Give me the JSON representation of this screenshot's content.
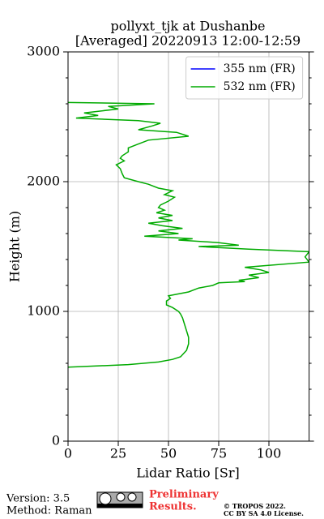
{
  "chart_data": {
    "type": "profile",
    "title": [
      "pollyxt_tjk at Dushanbe",
      "[Averaged] 20220913 12:00-12:59"
    ],
    "xlabel": "Lidar Ratio [Sr]",
    "ylabel": "Height (m)",
    "xlim": [
      0,
      120
    ],
    "ylim": [
      0,
      3000
    ],
    "xticks": [
      0,
      25,
      50,
      75,
      100
    ],
    "yticks": [
      0,
      1000,
      2000,
      3000
    ],
    "yminorticks": [
      200,
      400,
      600,
      800,
      1200,
      1400,
      1600,
      1800,
      2200,
      2400,
      2600,
      2800
    ],
    "grid": true,
    "legend": "upper right",
    "series": [
      {
        "name": "355 nm (FR)",
        "color": "#0000ff",
        "x": [],
        "values": []
      },
      {
        "name": "532 nm (FR)",
        "color": "#00aa00",
        "x": [
          0,
          30,
          45,
          52,
          56,
          59,
          60,
          60,
          59,
          58,
          57,
          56,
          55,
          52,
          49,
          49,
          51,
          50,
          60,
          65,
          72,
          75,
          88,
          85,
          95,
          90,
          100,
          96,
          88,
          96,
          120,
          118,
          120,
          90,
          65,
          85,
          75,
          55,
          62,
          38,
          55,
          45,
          57,
          47,
          40,
          52,
          45,
          52,
          44,
          48,
          45,
          46,
          50,
          53,
          48,
          52,
          45,
          40,
          35,
          28,
          27,
          26,
          24,
          28,
          26,
          27,
          30,
          30,
          35,
          40,
          60,
          54,
          35,
          42,
          46,
          35,
          4,
          15,
          8,
          25,
          20,
          43,
          0
        ],
        "values": [
          570,
          590,
          610,
          630,
          650,
          700,
          750,
          800,
          850,
          900,
          950,
          980,
          1000,
          1030,
          1050,
          1080,
          1100,
          1120,
          1150,
          1180,
          1200,
          1220,
          1230,
          1240,
          1260,
          1280,
          1300,
          1320,
          1340,
          1350,
          1380,
          1420,
          1460,
          1480,
          1500,
          1510,
          1530,
          1550,
          1560,
          1580,
          1600,
          1620,
          1640,
          1660,
          1680,
          1700,
          1720,
          1740,
          1760,
          1780,
          1800,
          1820,
          1850,
          1880,
          1900,
          1930,
          1950,
          1980,
          2000,
          2030,
          2060,
          2100,
          2130,
          2160,
          2180,
          2200,
          2230,
          2260,
          2290,
          2320,
          2350,
          2380,
          2400,
          2430,
          2450,
          2470,
          2490,
          2510,
          2530,
          2560,
          2580,
          2600,
          2610
        ]
      }
    ]
  },
  "footer": {
    "version": "Version: 3.5",
    "method": "Method: Raman",
    "preliminary": [
      "Preliminary",
      "Results."
    ],
    "copyright": [
      "© TROPOS 2022.",
      "CC BY SA 4.0 License."
    ]
  }
}
